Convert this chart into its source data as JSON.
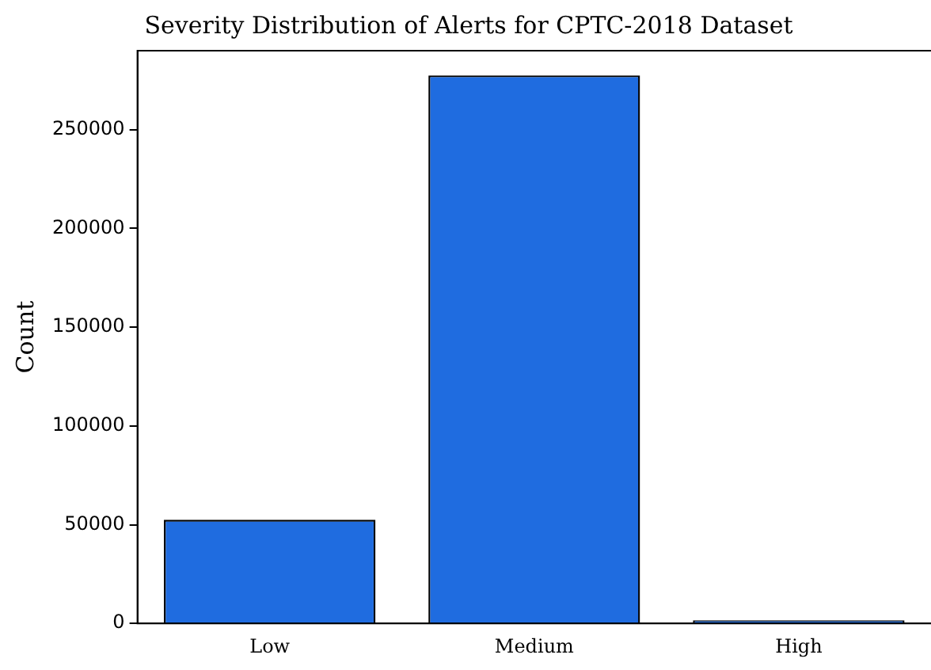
{
  "chart_data": {
    "type": "bar",
    "title": "Severity Distribution of Alerts for CPTC-2018 Dataset",
    "ylabel": "Count",
    "categories": [
      "Low",
      "Medium",
      "High"
    ],
    "values": [
      52500,
      277500,
      1600
    ],
    "color": "#1f6ce0",
    "ylim": [
      0,
      290000
    ],
    "yticks": [
      0,
      50000,
      100000,
      150000,
      200000,
      250000
    ],
    "grid": false,
    "legend": false
  }
}
